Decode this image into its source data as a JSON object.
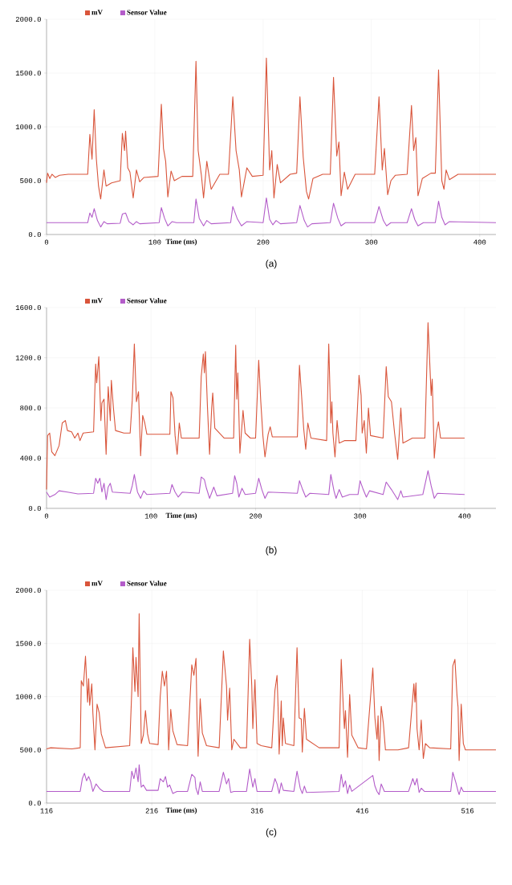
{
  "chart_data": [
    {
      "type": "line",
      "title": "(a)",
      "xlabel": "Time (ms)",
      "xlim": [
        0,
        415
      ],
      "ylim": [
        0,
        2000
      ],
      "xticks": [
        0,
        100,
        200,
        300,
        400
      ],
      "yticks": [
        {
          "value": 0,
          "label": "0.0"
        },
        {
          "value": 500,
          "label": "500.0"
        },
        {
          "value": 1000,
          "label": "1000.0"
        },
        {
          "value": 1500,
          "label": "1500.0"
        },
        {
          "value": 2000,
          "label": "2000.0"
        }
      ],
      "grid": true,
      "legend": "top left",
      "series": [
        {
          "name": "mV",
          "color": "#d9553b",
          "x": [
            0,
            1,
            3,
            5,
            8,
            12,
            20,
            38,
            40,
            42,
            44,
            46,
            48,
            50,
            53,
            55,
            60,
            68,
            70,
            72,
            73,
            75,
            77,
            80,
            83,
            86,
            90,
            103,
            106,
            108,
            110,
            112,
            115,
            118,
            125,
            135,
            138,
            140,
            143,
            145,
            148,
            152,
            160,
            168,
            172,
            175,
            178,
            180,
            185,
            190,
            200,
            203,
            206,
            208,
            210,
            213,
            216,
            225,
            231,
            234,
            237,
            240,
            242,
            246,
            255,
            262,
            265,
            268,
            270,
            272,
            275,
            278,
            285,
            303,
            307,
            310,
            312,
            315,
            318,
            322,
            333,
            337,
            339,
            341,
            343,
            347,
            355,
            359,
            362,
            365,
            367,
            369,
            372,
            380,
            415
          ],
          "values": [
            480,
            570,
            520,
            560,
            530,
            550,
            560,
            560,
            930,
            700,
            1160,
            700,
            450,
            330,
            600,
            450,
            480,
            500,
            940,
            780,
            960,
            620,
            580,
            340,
            600,
            490,
            530,
            540,
            1210,
            800,
            680,
            350,
            590,
            500,
            540,
            540,
            1610,
            780,
            550,
            340,
            680,
            420,
            560,
            560,
            1280,
            780,
            600,
            350,
            620,
            540,
            550,
            1640,
            600,
            780,
            340,
            650,
            480,
            560,
            570,
            1280,
            720,
            400,
            330,
            520,
            560,
            560,
            1460,
            730,
            860,
            360,
            580,
            420,
            560,
            560,
            1280,
            600,
            800,
            370,
            500,
            550,
            560,
            1200,
            780,
            900,
            360,
            520,
            570,
            570,
            1530,
            500,
            420,
            600,
            510,
            560,
            560
          ]
        },
        {
          "name": "Sensor Value",
          "color": "#b35cc9",
          "x": [
            0,
            38,
            40,
            42,
            44,
            47,
            50,
            53,
            56,
            68,
            70,
            73,
            76,
            80,
            83,
            86,
            104,
            106,
            109,
            112,
            116,
            120,
            136,
            138,
            141,
            145,
            148,
            152,
            170,
            172,
            176,
            180,
            185,
            200,
            203,
            206,
            209,
            212,
            216,
            231,
            234,
            238,
            241,
            245,
            262,
            265,
            269,
            272,
            276,
            303,
            307,
            311,
            314,
            318,
            333,
            337,
            340,
            343,
            348,
            359,
            362,
            365,
            368,
            372,
            415
          ],
          "values": [
            110,
            110,
            200,
            160,
            240,
            130,
            70,
            120,
            100,
            105,
            190,
            200,
            120,
            90,
            120,
            100,
            110,
            250,
            150,
            80,
            120,
            110,
            110,
            330,
            150,
            80,
            130,
            100,
            110,
            260,
            150,
            80,
            120,
            110,
            340,
            140,
            90,
            130,
            100,
            110,
            270,
            130,
            70,
            100,
            110,
            290,
            150,
            80,
            110,
            110,
            260,
            130,
            80,
            110,
            110,
            240,
            140,
            80,
            110,
            110,
            310,
            160,
            90,
            120,
            110
          ]
        }
      ]
    },
    {
      "type": "line",
      "title": "(b)",
      "xlabel": "Time (ms)",
      "xlim": [
        0,
        430
      ],
      "ylim": [
        0,
        1600
      ],
      "xticks": [
        0,
        100,
        200,
        300,
        400
      ],
      "yticks": [
        {
          "value": 0,
          "label": "0.0"
        },
        {
          "value": 400,
          "label": "400.0"
        },
        {
          "value": 800,
          "label": "800.0"
        },
        {
          "value": 1200,
          "label": "1200.0"
        },
        {
          "value": 1600,
          "label": "1600.0"
        }
      ],
      "grid": true,
      "legend": "top left",
      "series": [
        {
          "name": "mV",
          "color": "#d9553b",
          "x": [
            0,
            1,
            3,
            5,
            8,
            12,
            15,
            18,
            20,
            24,
            27,
            30,
            32,
            35,
            45,
            47,
            48,
            50,
            52,
            53,
            55,
            57,
            59,
            61,
            62,
            64,
            66,
            74,
            80,
            82,
            84,
            86,
            88,
            90,
            92,
            94,
            96,
            110,
            118,
            119,
            121,
            123,
            125,
            127,
            129,
            146,
            148,
            150,
            151,
            152,
            154,
            156,
            158,
            159,
            161,
            170,
            179,
            181,
            182,
            183,
            185,
            188,
            190,
            195,
            200,
            203,
            205,
            207,
            209,
            212,
            214,
            216,
            240,
            242,
            244,
            246,
            248,
            250,
            253,
            268,
            270,
            272,
            273,
            274,
            276,
            278,
            280,
            285,
            296,
            299,
            301,
            302,
            304,
            306,
            308,
            310,
            322,
            325,
            327,
            330,
            333,
            336,
            339,
            341,
            350,
            362,
            365,
            368,
            369,
            371,
            373,
            375,
            377,
            400
          ],
          "values": [
            150,
            580,
            600,
            450,
            420,
            500,
            680,
            700,
            620,
            610,
            560,
            600,
            540,
            600,
            610,
            1150,
            1000,
            1210,
            700,
            840,
            870,
            430,
            970,
            700,
            1020,
            800,
            620,
            600,
            600,
            860,
            1310,
            850,
            930,
            420,
            740,
            680,
            590,
            590,
            590,
            930,
            880,
            580,
            430,
            680,
            560,
            560,
            1050,
            1230,
            1080,
            1250,
            800,
            430,
            800,
            920,
            640,
            560,
            560,
            1300,
            870,
            1080,
            440,
            780,
            600,
            560,
            560,
            1180,
            850,
            580,
            410,
            590,
            650,
            570,
            570,
            1140,
            900,
            640,
            470,
            680,
            560,
            540,
            1310,
            680,
            850,
            600,
            410,
            700,
            520,
            540,
            540,
            1060,
            900,
            600,
            700,
            440,
            800,
            580,
            560,
            1130,
            890,
            850,
            600,
            390,
            800,
            520,
            560,
            560,
            1480,
            900,
            1030,
            400,
            600,
            690,
            560,
            560
          ]
        },
        {
          "name": "Sensor Value",
          "color": "#b35cc9",
          "x": [
            0,
            3,
            8,
            12,
            20,
            30,
            45,
            47,
            49,
            51,
            53,
            55,
            57,
            59,
            61,
            63,
            80,
            82,
            84,
            87,
            90,
            93,
            96,
            118,
            120,
            123,
            126,
            130,
            146,
            148,
            151,
            153,
            156,
            160,
            163,
            178,
            180,
            182,
            184,
            187,
            190,
            200,
            203,
            206,
            209,
            212,
            240,
            242,
            245,
            248,
            252,
            270,
            272,
            275,
            277,
            280,
            283,
            290,
            298,
            300,
            303,
            306,
            309,
            322,
            325,
            330,
            336,
            339,
            341,
            360,
            365,
            368,
            371,
            374,
            400
          ],
          "values": [
            130,
            90,
            110,
            140,
            130,
            115,
            120,
            240,
            200,
            240,
            130,
            200,
            70,
            170,
            200,
            130,
            120,
            180,
            270,
            130,
            80,
            140,
            110,
            120,
            190,
            130,
            90,
            130,
            120,
            250,
            230,
            160,
            80,
            170,
            100,
            120,
            260,
            200,
            90,
            160,
            110,
            120,
            240,
            150,
            80,
            130,
            120,
            220,
            150,
            90,
            120,
            110,
            270,
            140,
            80,
            150,
            90,
            110,
            110,
            220,
            150,
            90,
            140,
            110,
            210,
            150,
            70,
            140,
            90,
            110,
            300,
            180,
            80,
            120,
            110
          ]
        }
      ]
    },
    {
      "type": "line",
      "title": "(c)",
      "xlabel": "Time (ms)",
      "xlim": [
        116,
        543
      ],
      "ylim": [
        0,
        2000
      ],
      "xticks": [
        116,
        216,
        316,
        416,
        516
      ],
      "yticks": [
        {
          "value": 0,
          "label": "0.0"
        },
        {
          "value": 500,
          "label": "500.0"
        },
        {
          "value": 1000,
          "label": "1000.0"
        },
        {
          "value": 1500,
          "label": "1500.0"
        },
        {
          "value": 2000,
          "label": "2000.0"
        }
      ],
      "grid": true,
      "legend": "top left",
      "series": [
        {
          "name": "mV",
          "color": "#d9553b",
          "x": [
            116,
            120,
            140,
            148,
            149,
            151,
            153,
            155,
            156,
            157,
            159,
            160,
            162,
            164,
            166,
            168,
            172,
            195,
            197,
            198,
            200,
            201,
            203,
            204,
            206,
            208,
            210,
            212,
            214,
            222,
            224,
            226,
            228,
            230,
            231,
            232,
            234,
            236,
            240,
            250,
            254,
            256,
            258,
            259,
            260,
            262,
            264,
            268,
            280,
            284,
            287,
            288,
            290,
            292,
            294,
            300,
            306,
            309,
            311,
            312,
            314,
            316,
            320,
            330,
            333,
            335,
            336,
            337,
            339,
            340,
            341,
            343,
            351,
            354,
            356,
            358,
            359,
            361,
            363,
            375,
            394,
            396,
            398,
            399,
            400,
            402,
            404,
            406,
            412,
            420,
            426,
            428,
            430,
            431,
            432,
            434,
            436,
            438,
            450,
            460,
            465,
            466,
            467,
            468,
            470,
            472,
            474,
            476,
            480,
            500,
            502,
            504,
            506,
            507,
            508,
            510,
            512,
            514,
            543
          ],
          "values": [
            510,
            520,
            510,
            520,
            1150,
            1100,
            1380,
            950,
            1170,
            920,
            1120,
            850,
            500,
            930,
            850,
            650,
            520,
            540,
            1060,
            1460,
            1050,
            1370,
            1000,
            1780,
            560,
            640,
            870,
            650,
            560,
            550,
            1000,
            1240,
            1100,
            1240,
            900,
            500,
            880,
            680,
            550,
            540,
            1300,
            1200,
            1360,
            800,
            440,
            980,
            660,
            540,
            520,
            1430,
            1100,
            780,
            1080,
            500,
            600,
            520,
            520,
            1540,
            1100,
            700,
            1160,
            560,
            540,
            520,
            1060,
            1200,
            900,
            460,
            960,
            540,
            800,
            560,
            540,
            1460,
            800,
            790,
            480,
            890,
            600,
            520,
            520,
            1350,
            890,
            700,
            870,
            430,
            1020,
            640,
            520,
            510,
            1270,
            800,
            600,
            820,
            400,
            910,
            750,
            500,
            500,
            520,
            1120,
            950,
            1130,
            700,
            500,
            780,
            420,
            560,
            520,
            510,
            1290,
            1350,
            1010,
            900,
            400,
            930,
            560,
            500,
            500
          ]
        },
        {
          "name": "Sensor Value",
          "color": "#b35cc9",
          "x": [
            116,
            148,
            150,
            152,
            154,
            156,
            158,
            160,
            163,
            167,
            170,
            195,
            197,
            199,
            201,
            203,
            204,
            206,
            208,
            211,
            214,
            222,
            224,
            227,
            229,
            231,
            233,
            236,
            240,
            250,
            254,
            257,
            258,
            260,
            262,
            264,
            280,
            284,
            287,
            289,
            291,
            294,
            306,
            309,
            312,
            314,
            316,
            330,
            333,
            335,
            337,
            339,
            341,
            351,
            354,
            357,
            359,
            361,
            363,
            394,
            396,
            398,
            400,
            402,
            404,
            406,
            426,
            428,
            430,
            432,
            434,
            437,
            460,
            464,
            466,
            468,
            470,
            472,
            475,
            500,
            502,
            505,
            507,
            508,
            510,
            512,
            543
          ],
          "values": [
            110,
            110,
            230,
            280,
            210,
            250,
            200,
            110,
            180,
            130,
            110,
            110,
            300,
            230,
            330,
            200,
            360,
            150,
            170,
            120,
            120,
            120,
            230,
            200,
            250,
            150,
            170,
            90,
            110,
            110,
            270,
            240,
            140,
            80,
            200,
            110,
            110,
            290,
            180,
            230,
            100,
            110,
            110,
            320,
            150,
            230,
            110,
            110,
            230,
            180,
            90,
            190,
            120,
            110,
            300,
            140,
            90,
            160,
            100,
            110,
            270,
            150,
            210,
            90,
            170,
            110,
            260,
            160,
            110,
            80,
            180,
            110,
            110,
            230,
            170,
            230,
            100,
            140,
            110,
            110,
            290,
            190,
            110,
            80,
            150,
            110,
            110
          ]
        }
      ]
    }
  ]
}
